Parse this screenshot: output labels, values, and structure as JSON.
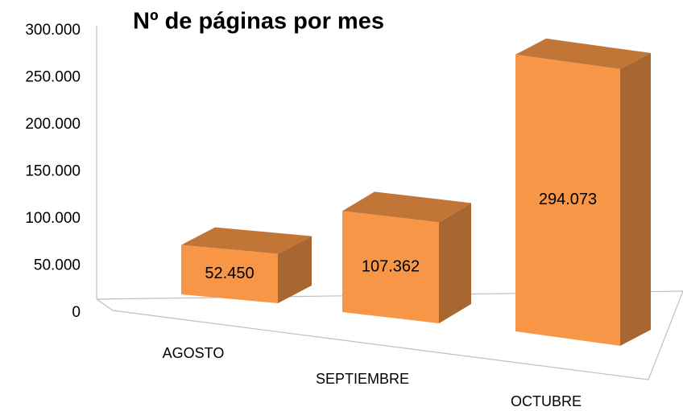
{
  "chart_data": {
    "type": "bar3d",
    "title": "Nº de páginas por mes",
    "categories": [
      "AGOSTO",
      "SEPTIEMBRE",
      "OCTUBRE"
    ],
    "values": [
      52450,
      107362,
      294073
    ],
    "value_labels": [
      "52.450",
      "107.362",
      "294.073"
    ],
    "color": "#f79646",
    "ylim": [
      0,
      300000
    ],
    "yticks": [
      {
        "value": 0,
        "label": "0"
      },
      {
        "value": 50000,
        "label": "50.000"
      },
      {
        "value": 100000,
        "label": "100.000"
      },
      {
        "value": 150000,
        "label": "150.000"
      },
      {
        "value": 200000,
        "label": "200.000"
      },
      {
        "value": 250000,
        "label": "250.000"
      },
      {
        "value": 300000,
        "label": "300.000"
      }
    ],
    "grid": false
  }
}
